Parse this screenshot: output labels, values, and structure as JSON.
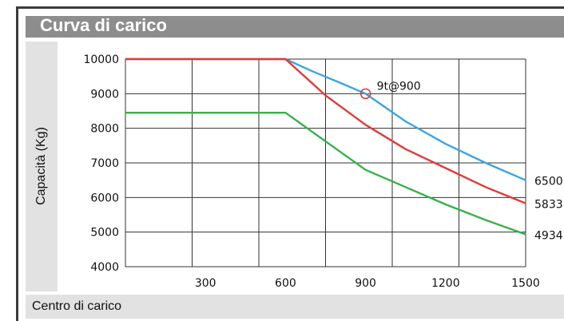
{
  "chart_data": {
    "type": "line",
    "title": "Curva di carico",
    "ylabel": "Capacità (Kg)",
    "xlabel": "Centro di carico",
    "xlim": [
      0,
      1500
    ],
    "ylim": [
      4000,
      10000
    ],
    "xticks": [
      "300",
      "600",
      "900",
      "1200",
      "1500"
    ],
    "yticks": [
      "10000",
      "9000",
      "8000",
      "7000",
      "6000",
      "5000",
      "4000"
    ],
    "grid": true,
    "series": [
      {
        "color": "#3aa6df",
        "end_label": "6500",
        "points": [
          [
            0,
            10000
          ],
          [
            600,
            10000
          ],
          [
            700,
            9650
          ],
          [
            800,
            9330
          ],
          [
            900,
            9000
          ],
          [
            1050,
            8200
          ],
          [
            1200,
            7550
          ],
          [
            1350,
            7000
          ],
          [
            1500,
            6500
          ]
        ]
      },
      {
        "color": "#e23a3a",
        "end_label": "5833",
        "points": [
          [
            0,
            10000
          ],
          [
            600,
            10000
          ],
          [
            750,
            8950
          ],
          [
            900,
            8100
          ],
          [
            1050,
            7400
          ],
          [
            1200,
            6850
          ],
          [
            1350,
            6300
          ],
          [
            1500,
            5833
          ]
        ]
      },
      {
        "color": "#34b24a",
        "end_label": "4934",
        "points": [
          [
            0,
            8450
          ],
          [
            600,
            8450
          ],
          [
            900,
            6800
          ],
          [
            1050,
            6300
          ],
          [
            1200,
            5800
          ],
          [
            1350,
            5350
          ],
          [
            1500,
            4934
          ]
        ]
      }
    ],
    "annotations": [
      {
        "label": "9t@900",
        "x": 900,
        "y": 9000,
        "color": "#e23a3a"
      }
    ]
  }
}
